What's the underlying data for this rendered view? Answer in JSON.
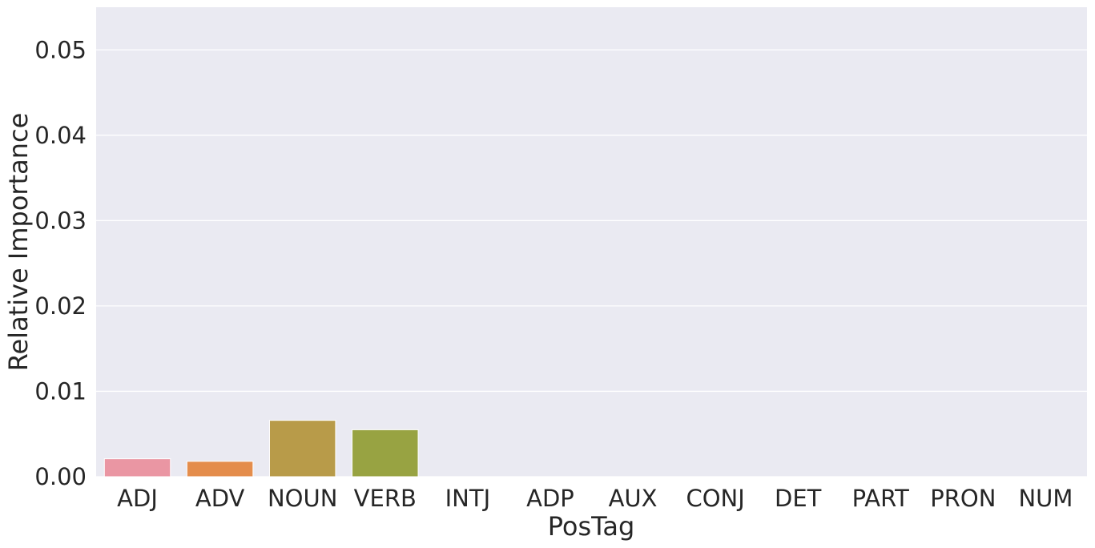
{
  "chart_data": {
    "type": "bar",
    "title": "",
    "xlabel": "PosTag",
    "ylabel": "Relative Importance",
    "categories": [
      "ADJ",
      "ADV",
      "NOUN",
      "VERB",
      "INTJ",
      "ADP",
      "AUX",
      "CONJ",
      "DET",
      "PART",
      "PRON",
      "NUM"
    ],
    "values": [
      0.0021,
      0.0018,
      0.0066,
      0.0055,
      0.0,
      0.0,
      0.0,
      0.0,
      0.0,
      0.0,
      0.0,
      0.0
    ],
    "colors": [
      "#ea96a3",
      "#e48d4c",
      "#b89b49",
      "#98a342",
      "#6da042",
      "#4fab84",
      "#50a89d",
      "#52a5b3",
      "#5ba9cd",
      "#a3a4ec",
      "#d08bea",
      "#e68ecb"
    ],
    "ylim": [
      0,
      0.055
    ],
    "yticks": [
      "0.00",
      "0.01",
      "0.02",
      "0.03",
      "0.04",
      "0.05"
    ],
    "ytick_values": [
      0,
      0.01,
      0.02,
      0.03,
      0.04,
      0.05
    ],
    "grid": true,
    "background": "#eaeaf2",
    "grid_color": "#ffffff"
  }
}
